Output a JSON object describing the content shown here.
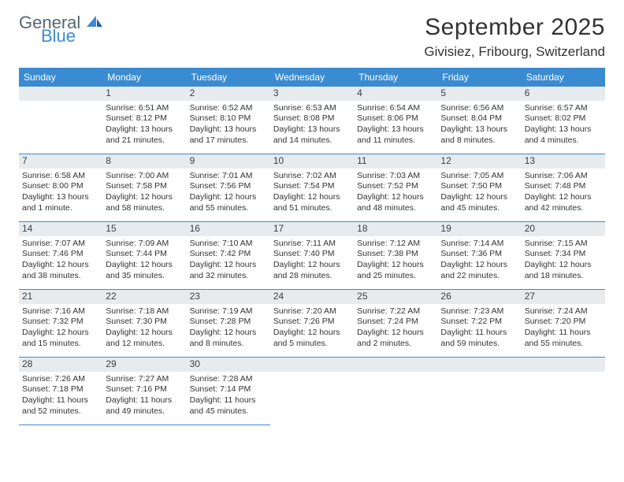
{
  "brand": {
    "line1": "General",
    "line2": "Blue"
  },
  "title": "September 2025",
  "location": "Givisiez, Fribourg, Switzerland",
  "colors": {
    "header_blue": "#3b8bd2",
    "logo_gray": "#5a6570",
    "daynum_bg": "#e8ebee",
    "text": "#333333",
    "background": "#ffffff"
  },
  "dayNames": [
    "Sunday",
    "Monday",
    "Tuesday",
    "Wednesday",
    "Thursday",
    "Friday",
    "Saturday"
  ],
  "weeks": [
    [
      {
        "n": "",
        "sr": "",
        "ss": "",
        "dl": ""
      },
      {
        "n": "1",
        "sr": "Sunrise: 6:51 AM",
        "ss": "Sunset: 8:12 PM",
        "dl": "Daylight: 13 hours and 21 minutes."
      },
      {
        "n": "2",
        "sr": "Sunrise: 6:52 AM",
        "ss": "Sunset: 8:10 PM",
        "dl": "Daylight: 13 hours and 17 minutes."
      },
      {
        "n": "3",
        "sr": "Sunrise: 6:53 AM",
        "ss": "Sunset: 8:08 PM",
        "dl": "Daylight: 13 hours and 14 minutes."
      },
      {
        "n": "4",
        "sr": "Sunrise: 6:54 AM",
        "ss": "Sunset: 8:06 PM",
        "dl": "Daylight: 13 hours and 11 minutes."
      },
      {
        "n": "5",
        "sr": "Sunrise: 6:56 AM",
        "ss": "Sunset: 8:04 PM",
        "dl": "Daylight: 13 hours and 8 minutes."
      },
      {
        "n": "6",
        "sr": "Sunrise: 6:57 AM",
        "ss": "Sunset: 8:02 PM",
        "dl": "Daylight: 13 hours and 4 minutes."
      }
    ],
    [
      {
        "n": "7",
        "sr": "Sunrise: 6:58 AM",
        "ss": "Sunset: 8:00 PM",
        "dl": "Daylight: 13 hours and 1 minute."
      },
      {
        "n": "8",
        "sr": "Sunrise: 7:00 AM",
        "ss": "Sunset: 7:58 PM",
        "dl": "Daylight: 12 hours and 58 minutes."
      },
      {
        "n": "9",
        "sr": "Sunrise: 7:01 AM",
        "ss": "Sunset: 7:56 PM",
        "dl": "Daylight: 12 hours and 55 minutes."
      },
      {
        "n": "10",
        "sr": "Sunrise: 7:02 AM",
        "ss": "Sunset: 7:54 PM",
        "dl": "Daylight: 12 hours and 51 minutes."
      },
      {
        "n": "11",
        "sr": "Sunrise: 7:03 AM",
        "ss": "Sunset: 7:52 PM",
        "dl": "Daylight: 12 hours and 48 minutes."
      },
      {
        "n": "12",
        "sr": "Sunrise: 7:05 AM",
        "ss": "Sunset: 7:50 PM",
        "dl": "Daylight: 12 hours and 45 minutes."
      },
      {
        "n": "13",
        "sr": "Sunrise: 7:06 AM",
        "ss": "Sunset: 7:48 PM",
        "dl": "Daylight: 12 hours and 42 minutes."
      }
    ],
    [
      {
        "n": "14",
        "sr": "Sunrise: 7:07 AM",
        "ss": "Sunset: 7:46 PM",
        "dl": "Daylight: 12 hours and 38 minutes."
      },
      {
        "n": "15",
        "sr": "Sunrise: 7:09 AM",
        "ss": "Sunset: 7:44 PM",
        "dl": "Daylight: 12 hours and 35 minutes."
      },
      {
        "n": "16",
        "sr": "Sunrise: 7:10 AM",
        "ss": "Sunset: 7:42 PM",
        "dl": "Daylight: 12 hours and 32 minutes."
      },
      {
        "n": "17",
        "sr": "Sunrise: 7:11 AM",
        "ss": "Sunset: 7:40 PM",
        "dl": "Daylight: 12 hours and 28 minutes."
      },
      {
        "n": "18",
        "sr": "Sunrise: 7:12 AM",
        "ss": "Sunset: 7:38 PM",
        "dl": "Daylight: 12 hours and 25 minutes."
      },
      {
        "n": "19",
        "sr": "Sunrise: 7:14 AM",
        "ss": "Sunset: 7:36 PM",
        "dl": "Daylight: 12 hours and 22 minutes."
      },
      {
        "n": "20",
        "sr": "Sunrise: 7:15 AM",
        "ss": "Sunset: 7:34 PM",
        "dl": "Daylight: 12 hours and 18 minutes."
      }
    ],
    [
      {
        "n": "21",
        "sr": "Sunrise: 7:16 AM",
        "ss": "Sunset: 7:32 PM",
        "dl": "Daylight: 12 hours and 15 minutes."
      },
      {
        "n": "22",
        "sr": "Sunrise: 7:18 AM",
        "ss": "Sunset: 7:30 PM",
        "dl": "Daylight: 12 hours and 12 minutes."
      },
      {
        "n": "23",
        "sr": "Sunrise: 7:19 AM",
        "ss": "Sunset: 7:28 PM",
        "dl": "Daylight: 12 hours and 8 minutes."
      },
      {
        "n": "24",
        "sr": "Sunrise: 7:20 AM",
        "ss": "Sunset: 7:26 PM",
        "dl": "Daylight: 12 hours and 5 minutes."
      },
      {
        "n": "25",
        "sr": "Sunrise: 7:22 AM",
        "ss": "Sunset: 7:24 PM",
        "dl": "Daylight: 12 hours and 2 minutes."
      },
      {
        "n": "26",
        "sr": "Sunrise: 7:23 AM",
        "ss": "Sunset: 7:22 PM",
        "dl": "Daylight: 11 hours and 59 minutes."
      },
      {
        "n": "27",
        "sr": "Sunrise: 7:24 AM",
        "ss": "Sunset: 7:20 PM",
        "dl": "Daylight: 11 hours and 55 minutes."
      }
    ],
    [
      {
        "n": "28",
        "sr": "Sunrise: 7:26 AM",
        "ss": "Sunset: 7:18 PM",
        "dl": "Daylight: 11 hours and 52 minutes."
      },
      {
        "n": "29",
        "sr": "Sunrise: 7:27 AM",
        "ss": "Sunset: 7:16 PM",
        "dl": "Daylight: 11 hours and 49 minutes."
      },
      {
        "n": "30",
        "sr": "Sunrise: 7:28 AM",
        "ss": "Sunset: 7:14 PM",
        "dl": "Daylight: 11 hours and 45 minutes."
      },
      {
        "n": "",
        "sr": "",
        "ss": "",
        "dl": ""
      },
      {
        "n": "",
        "sr": "",
        "ss": "",
        "dl": ""
      },
      {
        "n": "",
        "sr": "",
        "ss": "",
        "dl": ""
      },
      {
        "n": "",
        "sr": "",
        "ss": "",
        "dl": ""
      }
    ]
  ]
}
